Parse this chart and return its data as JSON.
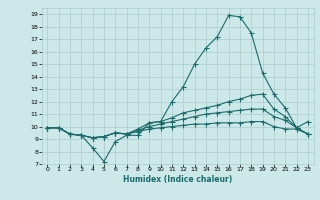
{
  "xlabel": "Humidex (Indice chaleur)",
  "ylabel": "",
  "bg_color": "#cce8e8",
  "grid_color": "#aacccc",
  "line_color": "#1a6b6b",
  "xlim": [
    -0.5,
    23.5
  ],
  "ylim": [
    7,
    19.5
  ],
  "yticks": [
    7,
    8,
    9,
    10,
    11,
    12,
    13,
    14,
    15,
    16,
    17,
    18,
    19
  ],
  "xticks": [
    0,
    1,
    2,
    3,
    4,
    5,
    6,
    7,
    8,
    9,
    10,
    11,
    12,
    13,
    14,
    15,
    16,
    17,
    18,
    19,
    20,
    21,
    22,
    23
  ],
  "line1_x": [
    0,
    1,
    2,
    3,
    4,
    5,
    6,
    7,
    8,
    9,
    10,
    11,
    12,
    13,
    14,
    15,
    16,
    17,
    18,
    19,
    20,
    21,
    22,
    23
  ],
  "line1_y": [
    9.9,
    9.9,
    9.4,
    9.3,
    8.3,
    7.2,
    8.8,
    9.3,
    9.3,
    10.3,
    10.4,
    12.0,
    13.2,
    15.0,
    16.3,
    17.2,
    18.9,
    18.8,
    17.5,
    14.3,
    12.6,
    11.5,
    9.9,
    10.4
  ],
  "line2_x": [
    0,
    1,
    2,
    3,
    4,
    5,
    6,
    7,
    8,
    9,
    10,
    11,
    12,
    13,
    14,
    15,
    16,
    17,
    18,
    19,
    20,
    21,
    22,
    23
  ],
  "line2_y": [
    9.9,
    9.9,
    9.4,
    9.3,
    9.1,
    9.2,
    9.5,
    9.4,
    9.8,
    10.3,
    10.4,
    10.7,
    11.1,
    11.3,
    11.5,
    11.7,
    12.0,
    12.2,
    12.5,
    12.6,
    11.4,
    10.8,
    9.9,
    9.4
  ],
  "line3_x": [
    0,
    1,
    2,
    3,
    4,
    5,
    6,
    7,
    8,
    9,
    10,
    11,
    12,
    13,
    14,
    15,
    16,
    17,
    18,
    19,
    20,
    21,
    22,
    23
  ],
  "line3_y": [
    9.9,
    9.9,
    9.4,
    9.3,
    9.1,
    9.2,
    9.5,
    9.4,
    9.7,
    10.0,
    10.2,
    10.4,
    10.6,
    10.8,
    11.0,
    11.1,
    11.2,
    11.3,
    11.4,
    11.4,
    10.8,
    10.5,
    9.9,
    9.4
  ],
  "line4_x": [
    0,
    1,
    2,
    3,
    4,
    5,
    6,
    7,
    8,
    9,
    10,
    11,
    12,
    13,
    14,
    15,
    16,
    17,
    18,
    19,
    20,
    21,
    22,
    23
  ],
  "line4_y": [
    9.9,
    9.9,
    9.4,
    9.3,
    9.1,
    9.2,
    9.5,
    9.4,
    9.6,
    9.8,
    9.9,
    10.0,
    10.1,
    10.2,
    10.2,
    10.3,
    10.3,
    10.3,
    10.4,
    10.4,
    10.0,
    9.8,
    9.8,
    9.4
  ]
}
